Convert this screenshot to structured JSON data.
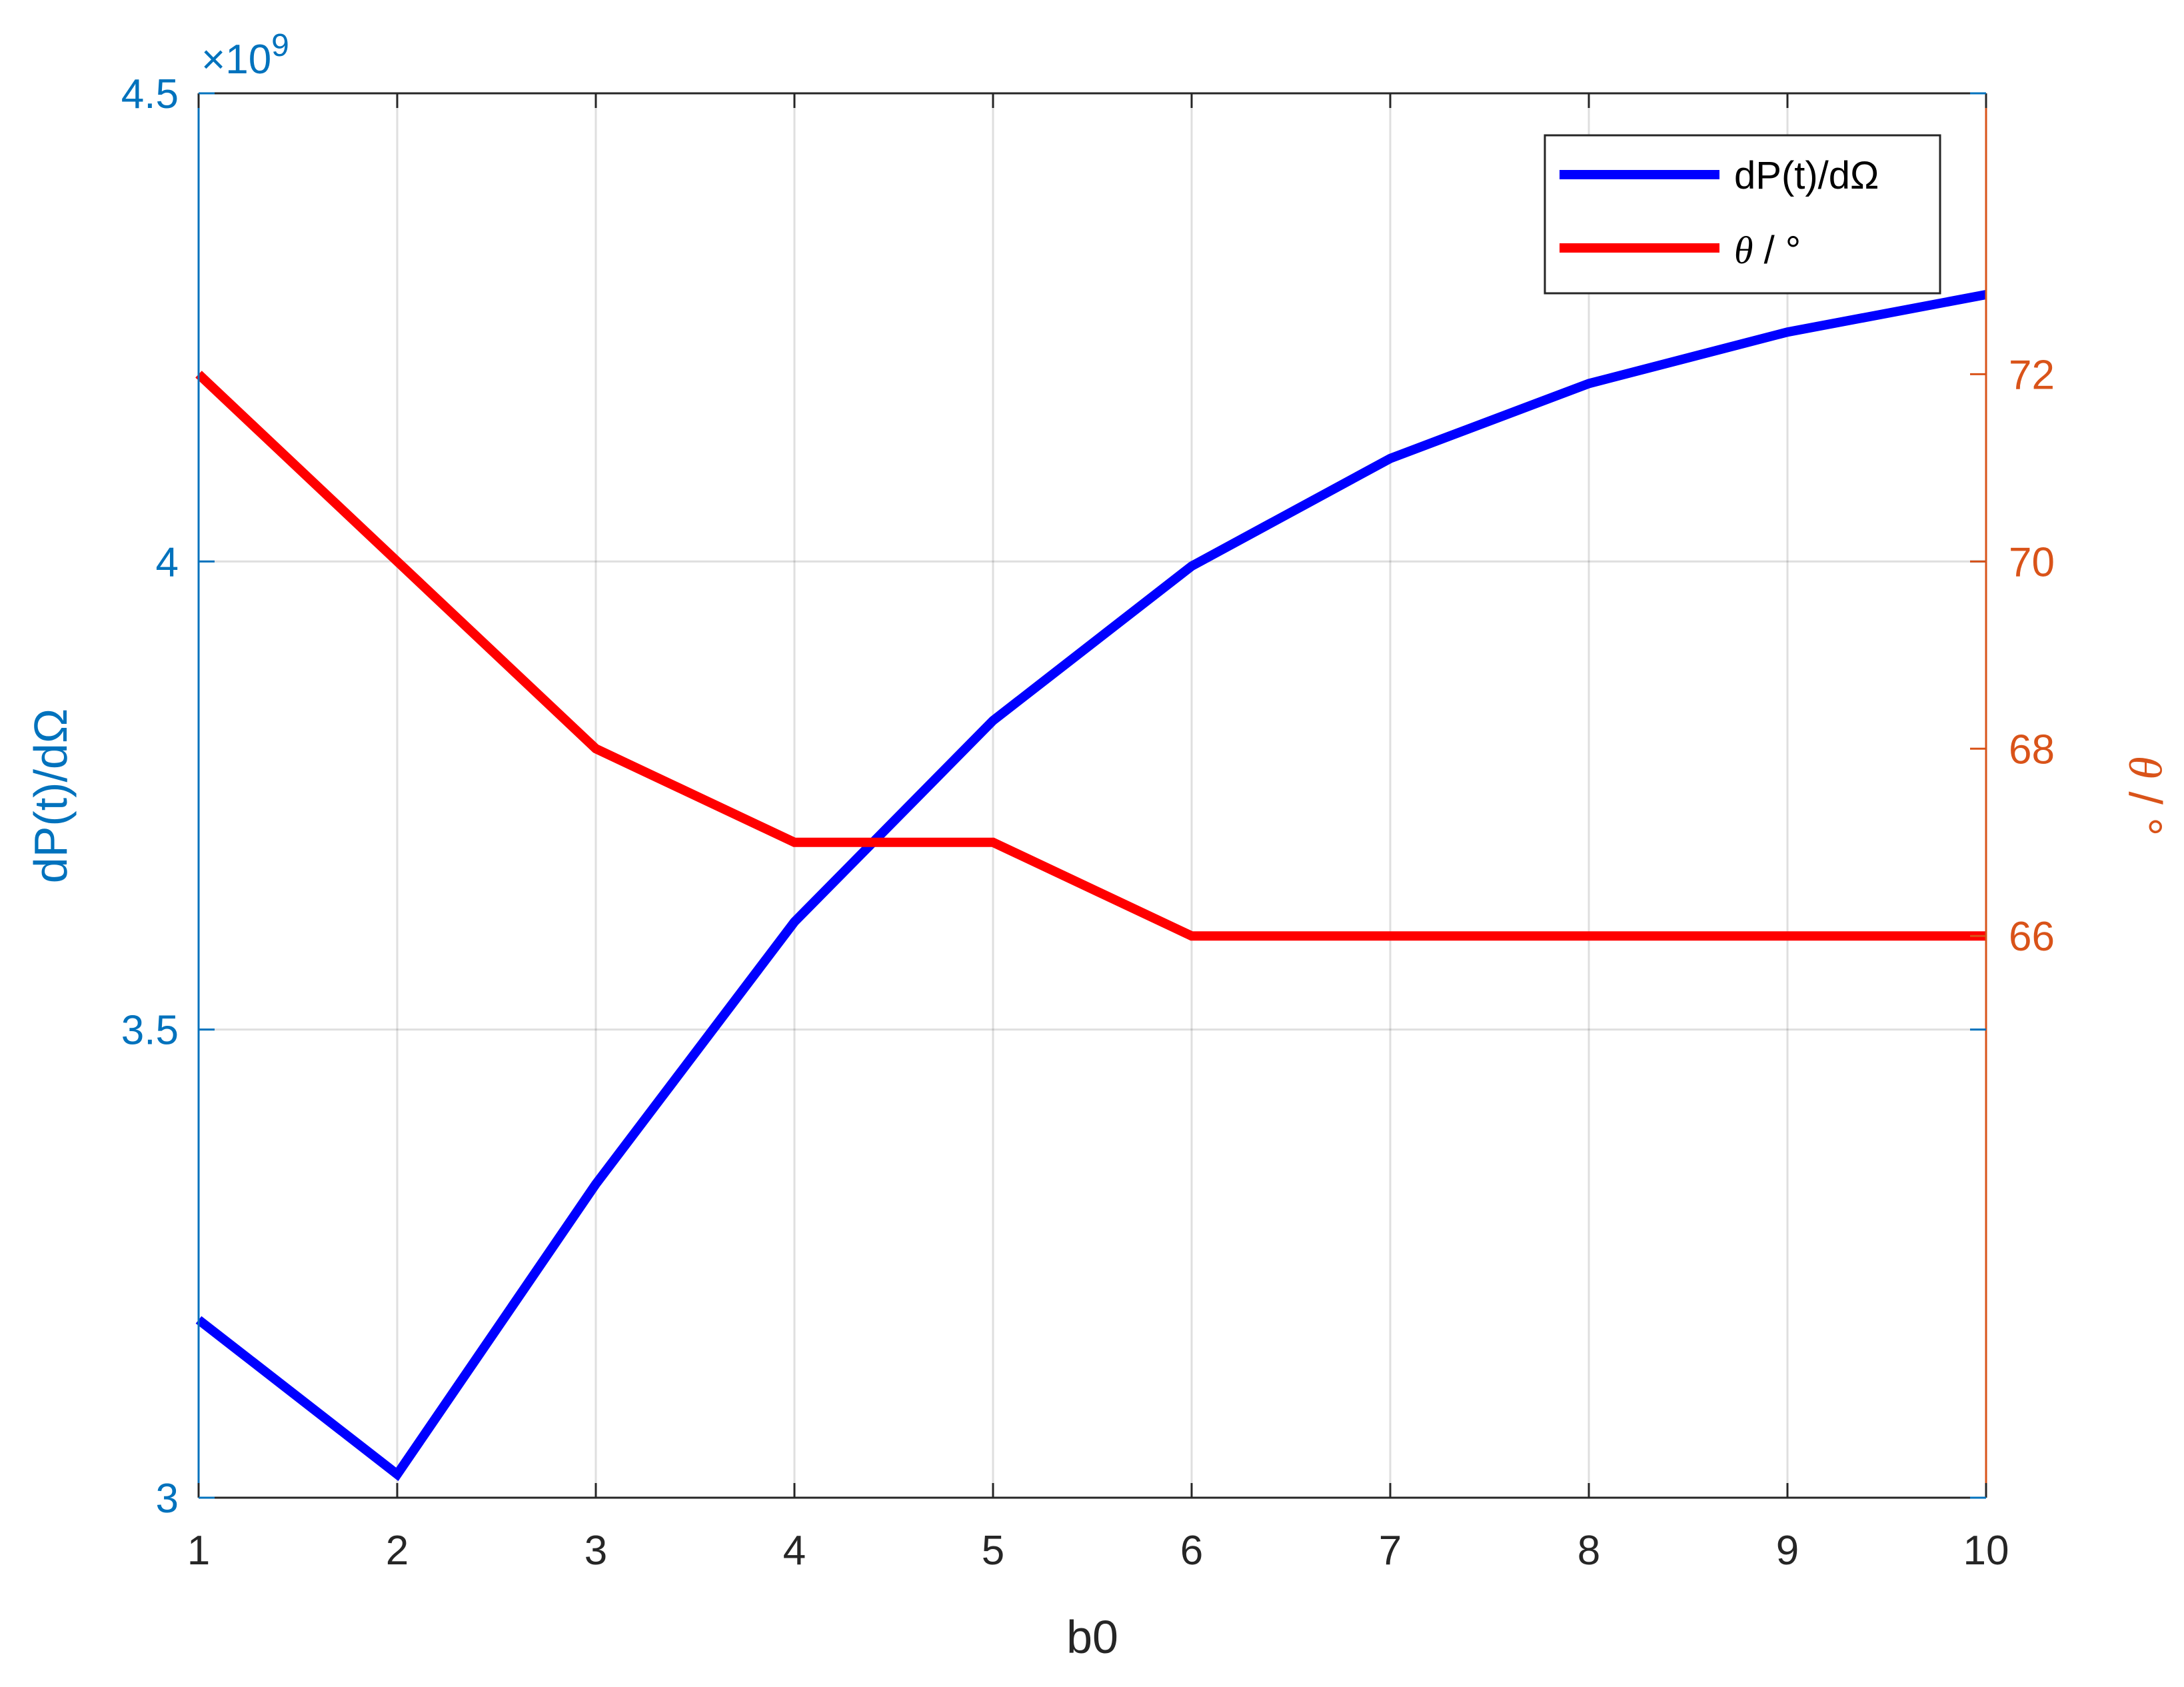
{
  "chart_data": {
    "type": "line",
    "x": [
      1,
      2,
      3,
      4,
      5,
      6,
      7,
      8,
      9,
      10
    ],
    "xlabel": "b0",
    "xlim": [
      1,
      10
    ],
    "xticks": [
      "1",
      "2",
      "3",
      "4",
      "5",
      "6",
      "7",
      "8",
      "9",
      "10"
    ],
    "grid": true,
    "legend_position": "top-right",
    "y_left": {
      "label": "dP(t)/dΩ",
      "exponent_label": "×10",
      "exponent_power": "9",
      "lim": [
        3,
        4.5
      ],
      "scale_factor": 1000000000,
      "ticks": [
        "3",
        "3.5",
        "4",
        "4.5"
      ],
      "color": "#0072BD"
    },
    "y_right": {
      "label_symbol": "θ",
      "label_rest": " / °",
      "lim": [
        60,
        75
      ],
      "ticks": [
        "66",
        "68",
        "70",
        "72"
      ],
      "color": "#D95319"
    },
    "series": [
      {
        "name": "dP(t)/dΩ",
        "legend_text": "dP(t)/dΩ",
        "axis": "left",
        "color": "#0000FF",
        "values": [
          3.19,
          3.025,
          3.335,
          3.615,
          3.83,
          3.995,
          4.11,
          4.19,
          4.245,
          4.285
        ]
      },
      {
        "name": "θ / °",
        "legend_symbol": "θ",
        "legend_rest": " / °",
        "axis": "right",
        "color": "#FF0000",
        "values": [
          72,
          70,
          68,
          67,
          67,
          66,
          66,
          66,
          66,
          66
        ]
      }
    ]
  }
}
